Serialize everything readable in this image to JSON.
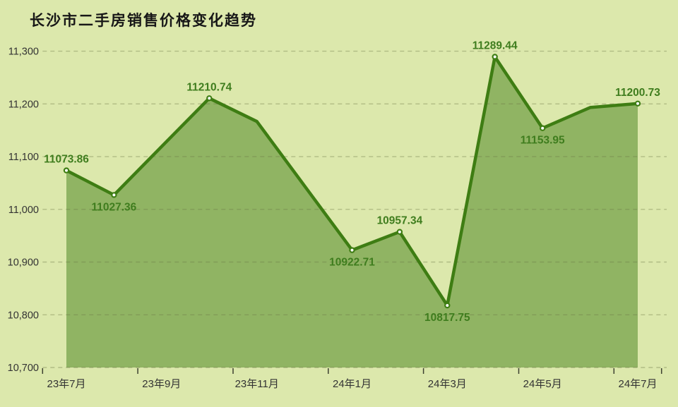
{
  "title": "长沙市二手房销售价格变化趋势",
  "colors": {
    "background": "#dce8ac",
    "area_fill": "#90b463",
    "line": "#3e7d13",
    "marker_fill": "#ffffff",
    "data_label": "#3f7d1e",
    "axis_label": "#333333",
    "grid_line": "#6a7444",
    "tick": "#3c4030",
    "title_text": "#171717"
  },
  "chart_data": {
    "type": "area",
    "title": "长沙市二手房销售价格变化趋势",
    "ylim": [
      10700,
      11300
    ],
    "grid": "dashed-horizontal",
    "legend": "none",
    "y_ticks": [
      {
        "label": "11,300",
        "value": 11300
      },
      {
        "label": "11,200",
        "value": 11200
      },
      {
        "label": "11,100",
        "value": 11100
      },
      {
        "label": "11,000",
        "value": 11000
      },
      {
        "label": "10,900",
        "value": 10900
      },
      {
        "label": "10,800",
        "value": 10800
      },
      {
        "label": "10,700",
        "value": 10700
      }
    ],
    "x_tick_labels": [
      {
        "label": "23年7月",
        "index": 0
      },
      {
        "label": "23年9月",
        "index": 2
      },
      {
        "label": "23年11月",
        "index": 4
      },
      {
        "label": "24年1月",
        "index": 6
      },
      {
        "label": "24年3月",
        "index": 8
      },
      {
        "label": "24年5月",
        "index": 10
      },
      {
        "label": "24年7月",
        "index": 12
      }
    ],
    "points": [
      {
        "month": "23年7月",
        "value": 11073.86,
        "label": "11073.86",
        "label_pos": "above"
      },
      {
        "month": "23年8月",
        "value": 11027.36,
        "label": "11027.36",
        "label_pos": "below"
      },
      {
        "month": "23年9月",
        "value": 11119.05,
        "label": null,
        "estimated": true
      },
      {
        "month": "23年10月",
        "value": 11210.74,
        "label": "11210.74",
        "label_pos": "above"
      },
      {
        "month": "23年11月",
        "value": 11166.7,
        "label": null,
        "estimated": true
      },
      {
        "month": "23年12月",
        "value": 11044.7,
        "label": null,
        "estimated": true
      },
      {
        "month": "24年1月",
        "value": 10922.71,
        "label": "10922.71",
        "label_pos": "below"
      },
      {
        "month": "24年2月",
        "value": 10957.34,
        "label": "10957.34",
        "label_pos": "above"
      },
      {
        "month": "24年3月",
        "value": 10817.75,
        "label": "10817.75",
        "label_pos": "below"
      },
      {
        "month": "24年4月",
        "value": 11289.44,
        "label": "11289.44",
        "label_pos": "above"
      },
      {
        "month": "24年5月",
        "value": 11153.95,
        "label": "11153.95",
        "label_pos": "below"
      },
      {
        "month": "24年6月",
        "value": 11193.2,
        "label": null,
        "estimated": true
      },
      {
        "month": "24年7月",
        "value": 11200.73,
        "label": "11200.73",
        "label_pos": "above"
      }
    ]
  }
}
